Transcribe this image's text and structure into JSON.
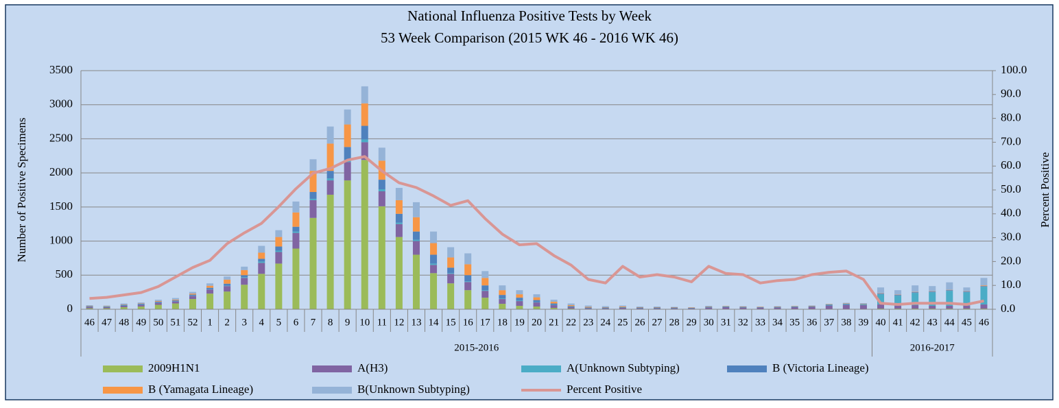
{
  "chart_data": {
    "type": "bar",
    "stacked": true,
    "title": "National Influenza Positive Tests by Week",
    "subtitle": "53 Week Comparison (2015 WK 46 - 2016 WK 46)",
    "y_label": "Number of Positive Specimens",
    "y2_label": "Percent Positive",
    "categories": [
      "46",
      "47",
      "48",
      "49",
      "50",
      "51",
      "52",
      "1",
      "2",
      "3",
      "4",
      "5",
      "6",
      "7",
      "8",
      "9",
      "10",
      "11",
      "12",
      "13",
      "14",
      "15",
      "16",
      "17",
      "18",
      "19",
      "20",
      "21",
      "22",
      "23",
      "24",
      "25",
      "26",
      "27",
      "28",
      "29",
      "30",
      "31",
      "32",
      "33",
      "34",
      "35",
      "36",
      "37",
      "38",
      "39",
      "40",
      "41",
      "42",
      "43",
      "44",
      "45",
      "46"
    ],
    "category_groups": [
      {
        "name": "2015-2016",
        "size": 46
      },
      {
        "name": "2016-2017",
        "size": 7
      }
    ],
    "ylim": [
      0,
      3500
    ],
    "yticks": [
      0,
      500,
      1000,
      1500,
      2000,
      2500,
      3000,
      3500
    ],
    "y2lim": [
      0,
      100
    ],
    "y2ticks": [
      {
        "value": 0,
        "label": "0.0"
      },
      {
        "value": 10,
        "label": "10.0"
      },
      {
        "value": 20,
        "label": "20.0"
      },
      {
        "value": 30,
        "label": "30.0"
      },
      {
        "value": 40,
        "label": "40.0"
      },
      {
        "value": 50,
        "label": "50.0"
      },
      {
        "value": 60,
        "label": "60.0"
      },
      {
        "value": 70,
        "label": "70.0"
      },
      {
        "value": 80,
        "label": "80.0"
      },
      {
        "value": 90,
        "label": "90.0"
      },
      {
        "value": 100,
        "label": "100.0"
      }
    ],
    "grid": true,
    "series": [
      {
        "name": "2009H1N1",
        "color": "#9bbb59",
        "values": [
          15,
          15,
          30,
          40,
          65,
          85,
          150,
          230,
          260,
          360,
          520,
          670,
          890,
          1340,
          1680,
          1890,
          2190,
          1510,
          1060,
          800,
          530,
          380,
          280,
          170,
          80,
          50,
          40,
          20,
          10,
          5,
          5,
          5,
          5,
          5,
          5,
          5,
          5,
          5,
          5,
          5,
          5,
          5,
          5,
          5,
          5,
          5,
          10,
          10,
          10,
          10,
          10,
          10,
          10
        ]
      },
      {
        "name": "A(H3)",
        "color": "#8064a2",
        "values": [
          20,
          15,
          20,
          25,
          30,
          30,
          45,
          60,
          80,
          100,
          160,
          170,
          230,
          260,
          210,
          270,
          260,
          220,
          190,
          200,
          120,
          140,
          120,
          100,
          70,
          70,
          60,
          40,
          20,
          10,
          10,
          15,
          10,
          10,
          10,
          10,
          20,
          25,
          20,
          20,
          20,
          25,
          30,
          50,
          60,
          55,
          60,
          40,
          50,
          40,
          40,
          40,
          60
        ]
      },
      {
        "name": "A(Unknown Subtyping)",
        "color": "#4bacc6",
        "values": [
          5,
          5,
          5,
          5,
          5,
          5,
          5,
          5,
          5,
          10,
          20,
          20,
          20,
          20,
          30,
          30,
          40,
          30,
          20,
          20,
          20,
          10,
          10,
          10,
          10,
          10,
          5,
          5,
          5,
          5,
          5,
          5,
          5,
          5,
          5,
          5,
          5,
          5,
          5,
          5,
          5,
          5,
          5,
          10,
          10,
          10,
          150,
          150,
          180,
          200,
          220,
          200,
          260
        ]
      },
      {
        "name": "B (Victoria Lineage)",
        "color": "#4f81bd",
        "values": [
          5,
          5,
          10,
          10,
          10,
          10,
          15,
          20,
          30,
          30,
          40,
          60,
          70,
          100,
          110,
          190,
          200,
          140,
          130,
          120,
          130,
          80,
          90,
          70,
          50,
          40,
          30,
          20,
          10,
          5,
          5,
          5,
          5,
          5,
          5,
          0,
          5,
          5,
          5,
          0,
          5,
          5,
          5,
          5,
          5,
          5,
          10,
          10,
          10,
          10,
          10,
          10,
          10
        ]
      },
      {
        "name": "B (Yamagata Lineage)",
        "color": "#f79646",
        "values": [
          5,
          5,
          5,
          5,
          10,
          10,
          15,
          30,
          60,
          75,
          90,
          140,
          210,
          310,
          400,
          330,
          330,
          280,
          200,
          210,
          170,
          150,
          160,
          110,
          70,
          50,
          40,
          25,
          15,
          10,
          5,
          10,
          5,
          5,
          5,
          5,
          5,
          5,
          5,
          5,
          5,
          5,
          5,
          5,
          5,
          5,
          5,
          5,
          5,
          5,
          5,
          5,
          10
        ]
      },
      {
        "name": "B(Unknown Subtyping)",
        "color": "#95b3d7",
        "values": [
          10,
          10,
          15,
          15,
          20,
          25,
          25,
          35,
          45,
          50,
          100,
          100,
          160,
          170,
          250,
          220,
          250,
          190,
          180,
          220,
          170,
          150,
          160,
          100,
          70,
          60,
          45,
          30,
          25,
          20,
          15,
          15,
          10,
          10,
          5,
          5,
          10,
          5,
          5,
          5,
          5,
          5,
          5,
          5,
          10,
          10,
          85,
          65,
          95,
          75,
          110,
          55,
          110
        ]
      },
      {
        "name": "Percent Positive",
        "color": "#d99694",
        "type": "line",
        "axis": "y2",
        "values": [
          4.5,
          5,
          6,
          7,
          9.5,
          13.5,
          17.5,
          20.5,
          27.5,
          32,
          36,
          43,
          50.5,
          57,
          59,
          62.5,
          64,
          58,
          53,
          51,
          47.5,
          43.5,
          45.5,
          38,
          31.5,
          27,
          27.5,
          22.5,
          18.5,
          12.5,
          11,
          18,
          13.5,
          14.5,
          13.5,
          11.5,
          18,
          15,
          14.5,
          11,
          12,
          12.5,
          14.5,
          15.5,
          16,
          12.5,
          2.5,
          2,
          2.5,
          2.5,
          2.5,
          2,
          3.5
        ]
      }
    ]
  }
}
